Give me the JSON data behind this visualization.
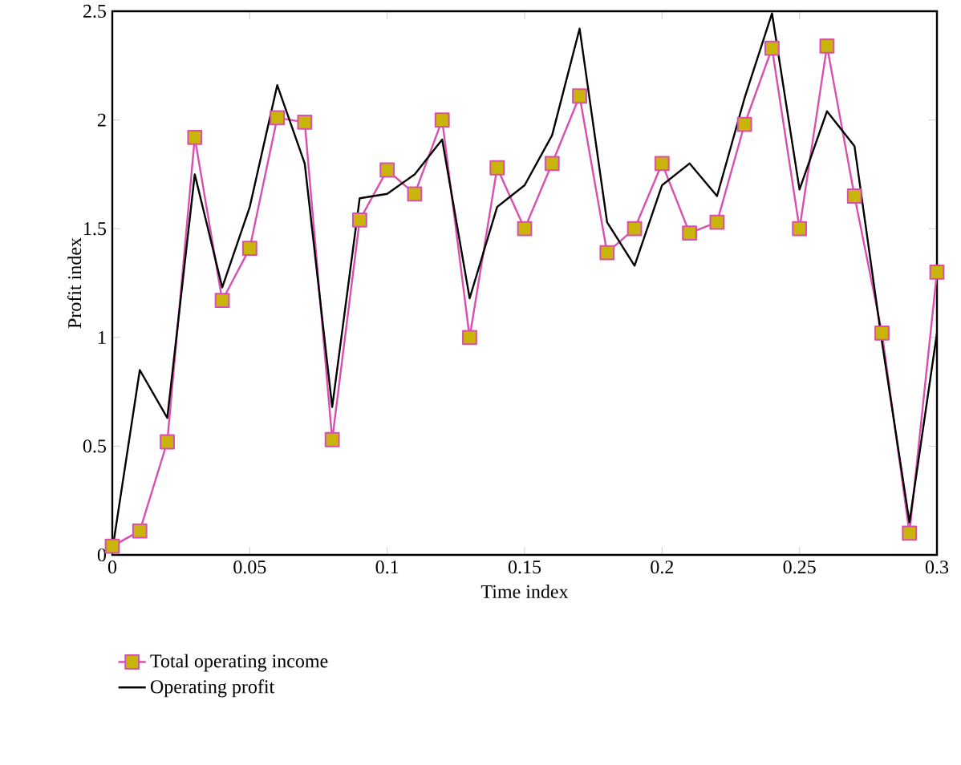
{
  "chart_data": {
    "type": "line",
    "xlabel": "Time index",
    "ylabel": "Profit index",
    "x": [
      0,
      0.01,
      0.02,
      0.03,
      0.04,
      0.05,
      0.06,
      0.07,
      0.08,
      0.09,
      0.1,
      0.11,
      0.12,
      0.13,
      0.14,
      0.15,
      0.16,
      0.17,
      0.18,
      0.19,
      0.2,
      0.21,
      0.22,
      0.23,
      0.24,
      0.25,
      0.26,
      0.27,
      0.28,
      0.29,
      0.3
    ],
    "series": [
      {
        "name": "Total operating income",
        "color": "#d94fb0",
        "marker": "square",
        "values": [
          0.04,
          0.11,
          0.52,
          1.92,
          1.17,
          1.41,
          2.01,
          1.99,
          0.53,
          1.54,
          1.77,
          1.66,
          2.0,
          1.0,
          1.78,
          1.5,
          1.8,
          2.11,
          1.39,
          1.5,
          1.8,
          1.48,
          1.53,
          1.98,
          2.33,
          1.5,
          2.34,
          1.65,
          1.02,
          0.1,
          1.3
        ]
      },
      {
        "name": "Operating profit",
        "color": "#000000",
        "marker": "none",
        "values": [
          0.02,
          0.85,
          0.63,
          1.75,
          1.23,
          1.6,
          2.16,
          1.8,
          0.68,
          1.64,
          1.66,
          1.75,
          1.91,
          1.18,
          1.6,
          1.7,
          1.93,
          2.42,
          1.53,
          1.33,
          1.7,
          1.8,
          1.65,
          2.1,
          2.49,
          1.68,
          2.04,
          1.88,
          0.98,
          0.15,
          1.02
        ]
      }
    ],
    "xlim": [
      0,
      0.3
    ],
    "ylim": [
      0,
      2.5
    ],
    "xticks": [
      0,
      0.05,
      0.1,
      0.15,
      0.2,
      0.25,
      0.3
    ],
    "yticks": [
      0,
      0.5,
      1,
      1.5,
      2,
      2.5
    ],
    "grid": false,
    "legend": "bottom left",
    "line_style": "solid"
  }
}
